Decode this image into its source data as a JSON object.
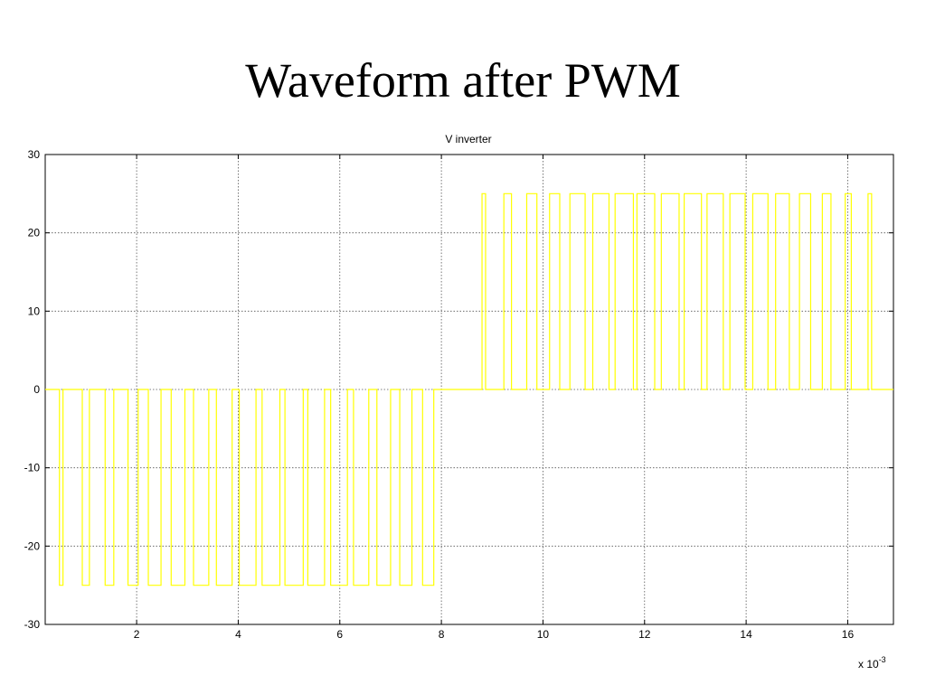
{
  "slide": {
    "title": "Waveform after PWM"
  },
  "chart_data": {
    "type": "line",
    "title": "V inverter",
    "xlabel": "",
    "ylabel": "",
    "x_multiplier_label": "x 10",
    "x_multiplier_exponent": "-3",
    "xlim": [
      0.2,
      16.9
    ],
    "ylim": [
      -30,
      30
    ],
    "xticks": [
      2,
      4,
      6,
      8,
      10,
      12,
      14,
      16
    ],
    "yticks": [
      30,
      20,
      10,
      0,
      -10,
      -20,
      -30
    ],
    "grid": true,
    "line_color": "#ffff00",
    "series": [
      {
        "pulses": [
          {
            "start": 0.48,
            "end": 0.55,
            "level": -25
          },
          {
            "start": 0.93,
            "end": 1.07,
            "level": -25
          },
          {
            "start": 1.38,
            "end": 1.55,
            "level": -25
          },
          {
            "start": 1.83,
            "end": 2.03,
            "level": -25
          },
          {
            "start": 2.23,
            "end": 2.48,
            "level": -25
          },
          {
            "start": 2.68,
            "end": 2.95,
            "level": -25
          },
          {
            "start": 3.12,
            "end": 3.42,
            "level": -25
          },
          {
            "start": 3.57,
            "end": 3.88,
            "level": -25
          },
          {
            "start": 4.02,
            "end": 4.35,
            "level": -25
          },
          {
            "start": 4.47,
            "end": 4.82,
            "level": -25
          },
          {
            "start": 4.92,
            "end": 5.28,
            "level": -25
          },
          {
            "start": 5.37,
            "end": 5.7,
            "level": -25
          },
          {
            "start": 5.82,
            "end": 6.15,
            "level": -25
          },
          {
            "start": 6.27,
            "end": 6.57,
            "level": -25
          },
          {
            "start": 6.73,
            "end": 7.0,
            "level": -25
          },
          {
            "start": 7.18,
            "end": 7.42,
            "level": -25
          },
          {
            "start": 7.63,
            "end": 7.85,
            "level": -25
          },
          {
            "start": 8.8,
            "end": 8.87,
            "level": 25
          },
          {
            "start": 9.23,
            "end": 9.38,
            "level": 25
          },
          {
            "start": 9.68,
            "end": 9.88,
            "level": 25
          },
          {
            "start": 10.13,
            "end": 10.33,
            "level": 25
          },
          {
            "start": 10.53,
            "end": 10.83,
            "level": 25
          },
          {
            "start": 10.98,
            "end": 11.3,
            "level": 25
          },
          {
            "start": 11.42,
            "end": 11.78,
            "level": 25
          },
          {
            "start": 11.85,
            "end": 12.2,
            "level": 25
          },
          {
            "start": 12.33,
            "end": 12.68,
            "level": 25
          },
          {
            "start": 12.78,
            "end": 13.12,
            "level": 25
          },
          {
            "start": 13.23,
            "end": 13.55,
            "level": 25
          },
          {
            "start": 13.68,
            "end": 13.98,
            "level": 25
          },
          {
            "start": 14.13,
            "end": 14.43,
            "level": 25
          },
          {
            "start": 14.58,
            "end": 14.85,
            "level": 25
          },
          {
            "start": 15.05,
            "end": 15.27,
            "level": 25
          },
          {
            "start": 15.5,
            "end": 15.67,
            "level": 25
          },
          {
            "start": 15.95,
            "end": 16.07,
            "level": 25
          },
          {
            "start": 16.4,
            "end": 16.47,
            "level": 25
          }
        ]
      }
    ]
  }
}
